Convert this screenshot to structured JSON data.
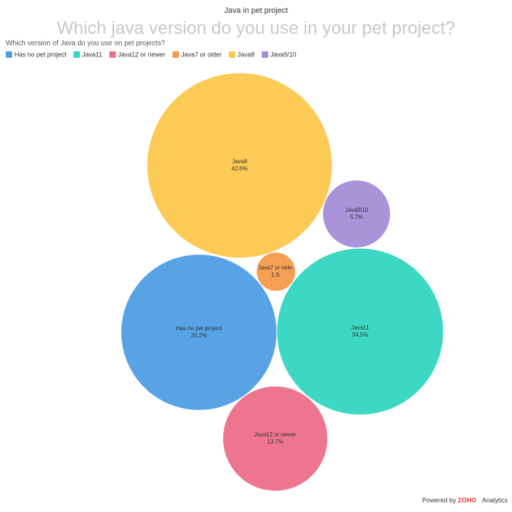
{
  "chart_data": {
    "type": "packed-bubble",
    "header": "Java in pet project",
    "title": "Which java version do you use in your pet project?",
    "subtitle": "Which version of Java do you use on pet projects?",
    "categories": [
      "Has no pet project",
      "Java11",
      "Java12 or newer",
      "Java7 or older",
      "Java8",
      "Java9/10"
    ],
    "bubble_labels": [
      "Has no pet project",
      "Java11",
      "Java12 or newer",
      "Java7 or olde.",
      "Java8",
      "Java9/10"
    ],
    "values": [
      30.2,
      34.5,
      13.7,
      1.9,
      42.6,
      5.7
    ],
    "value_labels": [
      "30.2%",
      "34.5%",
      "13.7%",
      "1.9.",
      "42.6%",
      "5.7%"
    ],
    "colors": [
      "#4e9ee5",
      "#33d6c0",
      "#ec6f88",
      "#f69b4a",
      "#fdc74d",
      "#a78dd8"
    ],
    "legend": "top-left"
  },
  "footer": {
    "prefix": "Powered by",
    "brand": "ZOHO",
    "suffix": "Analytics"
  }
}
